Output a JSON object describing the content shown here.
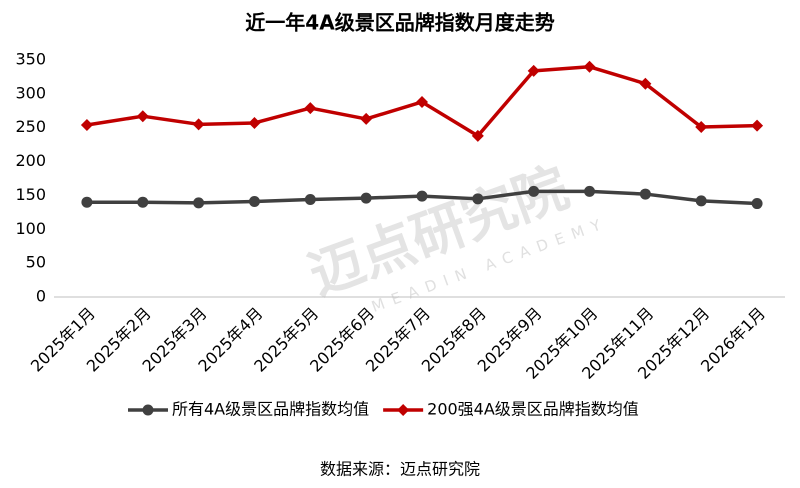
{
  "chart_data": {
    "type": "line",
    "title": "近一年4A级景区品牌指数月度走势",
    "categories": [
      "2025年1月",
      "2025年2月",
      "2025年3月",
      "2025年4月",
      "2025年5月",
      "2025年6月",
      "2025年7月",
      "2025年8月",
      "2025年9月",
      "2025年10月",
      "2025年11月",
      "2025年12月",
      "2026年1月"
    ],
    "series": [
      {
        "name": "所有4A级景区品牌指数均值",
        "color": "#404040",
        "marker": "circle",
        "values": [
          140,
          140,
          139,
          141,
          144,
          146,
          149,
          145,
          156,
          156,
          152,
          142,
          138
        ]
      },
      {
        "name": "200强4A级景区品牌指数均值",
        "color": "#c00000",
        "marker": "diamond",
        "values": [
          254,
          267,
          255,
          257,
          279,
          263,
          288,
          238,
          334,
          340,
          315,
          251,
          253
        ]
      }
    ],
    "ylim": [
      0,
      350
    ],
    "yticks": [
      0,
      50,
      100,
      150,
      200,
      250,
      300,
      350
    ],
    "grid": false,
    "legend": "bottom",
    "source": "数据来源：迈点研究院",
    "watermark": "迈点研究院",
    "watermark_subtitle": "MEADIN ACADEMY"
  }
}
